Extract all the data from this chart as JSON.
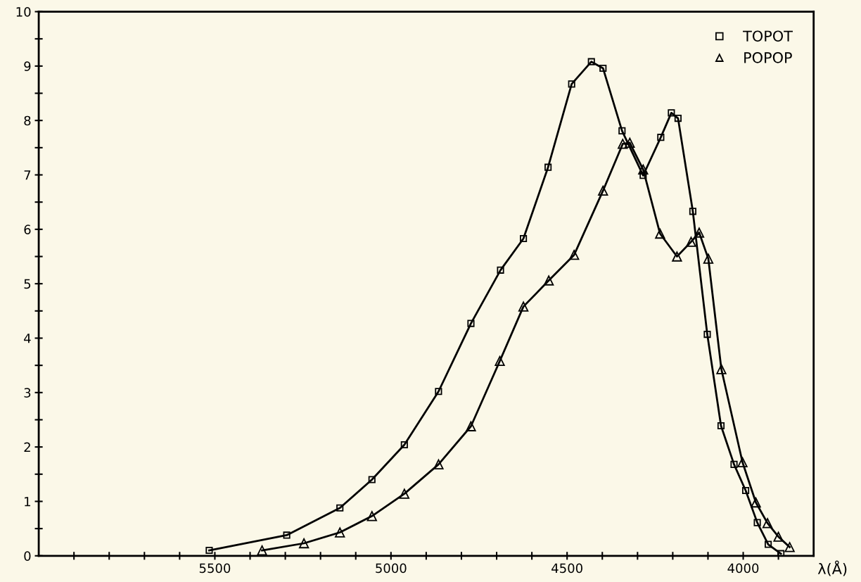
{
  "chart_data": {
    "type": "line",
    "xlabel": "λ(Å)",
    "xlim": [
      6000,
      3800
    ],
    "xticks": [
      {
        "value": 5900,
        "label": null
      },
      {
        "value": 5800,
        "label": null
      },
      {
        "value": 5700,
        "label": null
      },
      {
        "value": 5600,
        "label": null
      },
      5500,
      {
        "value": 5400,
        "label": null
      },
      {
        "value": 5300,
        "label": null
      },
      {
        "value": 5200,
        "label": null
      },
      {
        "value": 5100,
        "label": null
      },
      5000,
      {
        "value": 4900,
        "label": null
      },
      {
        "value": 4800,
        "label": null
      },
      {
        "value": 4700,
        "label": null
      },
      {
        "value": 4600,
        "label": null
      },
      4500,
      {
        "value": 4400,
        "label": null
      },
      {
        "value": 4300,
        "label": null
      },
      {
        "value": 4200,
        "label": null
      },
      {
        "value": 4100,
        "label": null
      },
      4000,
      {
        "value": 3900,
        "label": null
      }
    ],
    "ylim": [
      0,
      10
    ],
    "yticks": [
      0,
      {
        "value": 0.5,
        "label": null
      },
      1,
      {
        "value": 1.5,
        "label": null
      },
      2,
      {
        "value": 2.5,
        "label": null
      },
      3,
      {
        "value": 3.5,
        "label": null
      },
      4,
      {
        "value": 4.5,
        "label": null
      },
      5,
      {
        "value": 5.5,
        "label": null
      },
      6,
      {
        "value": 6.5,
        "label": null
      },
      7,
      {
        "value": 7.5,
        "label": null
      },
      8,
      {
        "value": 8.5,
        "label": null
      },
      9,
      {
        "value": 9.5,
        "label": null
      },
      10
    ],
    "grid": false,
    "legend": "top right",
    "line_style": "solid",
    "series": [
      {
        "name": "TOPOT",
        "color": "#000000",
        "marker": "square",
        "x": [
          5516,
          5296,
          5145,
          5054,
          4962,
          4865,
          4773,
          4689,
          4624,
          4554,
          4487,
          4431,
          4398,
          4344,
          4284,
          4234,
          4204,
          4185,
          4143,
          4102,
          4063,
          4026,
          3993,
          3960,
          3929,
          3893
        ],
        "values": [
          0.1,
          0.38,
          0.88,
          1.4,
          2.04,
          3.02,
          4.27,
          5.25,
          5.83,
          7.14,
          8.67,
          9.08,
          8.96,
          7.81,
          6.99,
          7.69,
          8.14,
          8.04,
          6.33,
          4.07,
          2.39,
          1.68,
          1.2,
          0.61,
          0.21,
          0.04
        ]
      },
      {
        "name": "POPOP",
        "color": "#000000",
        "marker": "triangle",
        "x": [
          5366,
          5247,
          5145,
          5054,
          4962,
          4865,
          4773,
          4691,
          4624,
          4552,
          4480,
          4398,
          4342,
          4322,
          4284,
          4236,
          4188,
          4148,
          4125,
          4099,
          4062,
          4002,
          3964,
          3931,
          3900,
          3868
        ],
        "values": [
          0.1,
          0.23,
          0.43,
          0.73,
          1.14,
          1.68,
          2.38,
          3.58,
          4.58,
          5.06,
          5.53,
          6.71,
          7.57,
          7.59,
          7.1,
          5.92,
          5.5,
          5.77,
          5.94,
          5.46,
          3.43,
          1.72,
          0.98,
          0.6,
          0.35,
          0.16
        ]
      }
    ]
  }
}
